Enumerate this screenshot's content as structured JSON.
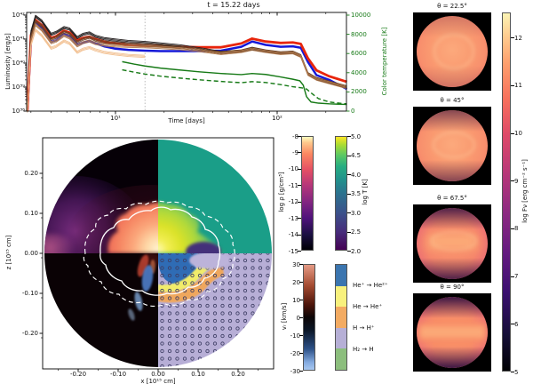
{
  "top_chart": {
    "title": "t = 15.22 days",
    "xlabel": "Time [days]",
    "ylabel": "Luminosity [erg/s]",
    "right_ylabel": "Color temperature [K]",
    "right_axis_color": "#177a17",
    "marker_days": 15.22,
    "x_ticks": [
      {
        "label": "10¹",
        "t": 10
      },
      {
        "label": "10²",
        "t": 100
      }
    ],
    "y_ticks": [
      {
        "label": "10⁴²",
        "logL": 42
      },
      {
        "label": "10⁴¹",
        "logL": 41
      },
      {
        "label": "10⁴⁰",
        "logL": 40
      },
      {
        "label": "10³⁹",
        "logL": 39
      },
      {
        "label": "10³⁸",
        "logL": 38
      }
    ],
    "right_ticks": [
      {
        "label": "10000",
        "T": 10000
      },
      {
        "label": "8000",
        "T": 8000
      },
      {
        "label": "6000",
        "T": 6000
      },
      {
        "label": "4000",
        "T": 4000
      },
      {
        "label": "2000",
        "T": 2000
      },
      {
        "label": "0",
        "T": 0
      }
    ]
  },
  "chart_data": [
    {
      "type": "line",
      "title": "luminosity_vs_time",
      "xlabel": "Time [days]",
      "ylabel": "Luminosity [erg/s]",
      "x_scale": "log",
      "y_scale": "log",
      "xlim_days": [
        2.8,
        270
      ],
      "ylim_log10": [
        38,
        42
      ],
      "x_days": [
        2.85,
        3.0,
        3.2,
        3.5,
        4.0,
        4.3,
        4.8,
        5.2,
        5.8,
        6.3,
        6.9,
        7.5,
        8.5,
        10,
        12,
        15.2,
        19,
        25,
        33,
        45,
        60,
        70,
        85,
        105,
        125,
        140,
        155,
        175,
        210,
        270
      ],
      "series": [
        {
          "name": "L_viewing_angle_pole",
          "color": "#241f1f",
          "width": 0.9,
          "log10_L": [
            38.0,
            41.3,
            41.95,
            41.75,
            41.2,
            41.28,
            41.48,
            41.42,
            41.06,
            41.2,
            41.26,
            41.12,
            41.02,
            40.96,
            40.9,
            40.86,
            40.8,
            40.72,
            40.6,
            40.45,
            40.5,
            40.6,
            40.5,
            40.42,
            40.45,
            40.3,
            39.55,
            39.35,
            39.2,
            39.0
          ]
        },
        {
          "name": "L_viewing_angle_mid1",
          "color": "#6b4226",
          "width": 0.85,
          "log10_L": [
            38.0,
            41.1,
            41.75,
            41.55,
            41.0,
            41.08,
            41.3,
            41.22,
            40.88,
            41.0,
            41.08,
            40.96,
            40.88,
            40.83,
            40.79,
            40.76,
            40.72,
            40.66,
            40.56,
            40.43,
            40.51,
            40.62,
            40.51,
            40.43,
            40.46,
            40.31,
            39.56,
            39.36,
            39.21,
            39.01
          ]
        },
        {
          "name": "L_viewing_angle_mid2",
          "color": "#b07a4e",
          "width": 0.85,
          "log10_L": [
            38.0,
            40.95,
            41.6,
            41.38,
            40.85,
            40.92,
            41.15,
            41.05,
            40.72,
            40.85,
            40.92,
            40.82,
            40.75,
            40.72,
            40.7,
            40.68,
            40.65,
            40.6,
            40.52,
            40.4,
            40.48,
            40.58,
            40.48,
            40.4,
            40.43,
            40.28,
            39.53,
            39.33,
            39.18,
            38.98
          ]
        },
        {
          "name": "L_viewing_angle_equator",
          "color": "#f2c091",
          "width": 0.85,
          "log10_L": [
            38.0,
            40.75,
            41.38,
            41.15,
            40.62,
            40.7,
            40.92,
            40.82,
            40.45,
            40.58,
            40.65,
            40.55,
            40.45,
            40.38,
            40.32,
            40.28
          ]
        },
        {
          "name": "L_thick_blue",
          "color": "#1518d8",
          "width": 2.5,
          "log10_L": [
            38.0,
            41.0,
            41.7,
            41.45,
            40.88,
            40.95,
            41.2,
            41.1,
            40.76,
            40.86,
            40.93,
            40.83,
            40.7,
            40.6,
            40.55,
            40.52,
            40.5,
            40.5,
            40.5,
            40.52,
            40.68,
            40.9,
            40.76,
            40.68,
            40.7,
            40.64,
            40.05,
            39.5,
            39.3,
            38.92
          ]
        },
        {
          "name": "L_thick_red",
          "color": "#e8250c",
          "width": 2.8,
          "log10_L": [
            38.0,
            41.15,
            41.8,
            41.58,
            41.05,
            41.12,
            41.35,
            41.27,
            40.95,
            41.05,
            41.1,
            41.0,
            40.9,
            40.82,
            40.76,
            40.72,
            40.7,
            40.68,
            40.66,
            40.66,
            40.82,
            41.02,
            40.9,
            40.84,
            40.86,
            40.8,
            40.2,
            39.7,
            39.45,
            39.22
          ]
        }
      ]
    },
    {
      "type": "line",
      "title": "color_temperature_vs_time",
      "ylabel": "Color temperature [K]",
      "ylim_K": [
        0,
        10000
      ],
      "x_days": [
        11,
        13,
        15.2,
        19,
        25,
        33,
        45,
        60,
        70,
        85,
        105,
        125,
        138,
        145,
        152,
        162,
        180,
        210,
        250,
        270
      ],
      "series": [
        {
          "name": "T_color_solid",
          "color": "#177a17",
          "style": "solid",
          "T_K": [
            5150,
            4900,
            4700,
            4480,
            4280,
            4090,
            3920,
            3800,
            3920,
            3820,
            3560,
            3320,
            3160,
            2700,
            1500,
            950,
            830,
            760,
            710,
            690
          ]
        },
        {
          "name": "T_color_dashed",
          "color": "#177a17",
          "style": "dashed",
          "T_K": [
            4300,
            4060,
            3860,
            3640,
            3440,
            3260,
            3090,
            2960,
            3070,
            2980,
            2760,
            2540,
            2450,
            2400,
            2300,
            1900,
            1300,
            950,
            800,
            760
          ]
        }
      ]
    }
  ],
  "main_map": {
    "xlabel": "x [10¹⁵ cm]",
    "ylabel": "z [10¹⁵ cm]",
    "x_ticks": [
      "-0.20",
      "-0.10",
      "0.00",
      "0.10",
      "0.20"
    ],
    "y_ticks": [
      "0.20",
      "0.10",
      "0.00",
      "-0.10",
      "-0.20"
    ],
    "quadrants": [
      "density (log rho, magma)",
      "temperature (log T, viridis)",
      "radial velocity (v_r)",
      "ionization fronts (hatched)"
    ]
  },
  "colorbars": {
    "density": {
      "label": "log ρ [g/cm³]",
      "ticks": [
        "-8",
        "-9",
        "-10",
        "-11",
        "-12",
        "-13",
        "-14",
        "-15"
      ],
      "colormap": "magma",
      "top_color": "#fcfdbf",
      "bottom_color": "#000004"
    },
    "temperature": {
      "label": "log T [K]",
      "ticks": [
        "5.0",
        "4.5",
        "4.0",
        "3.5",
        "3.0",
        "2.5",
        "2.0"
      ],
      "colormap": "viridis",
      "top_color": "#fde725",
      "bottom_color": "#440154"
    },
    "velocity": {
      "label": "vᵣ [km/s]",
      "ticks": [
        "30",
        "20",
        "10",
        "0",
        "-10",
        "-20",
        "-30"
      ],
      "top_color": "#e59a85",
      "mid_color": "#0c0607",
      "bottom_color": "#a8c8f0"
    },
    "ionization": {
      "segment_colors": [
        "#3b75af",
        "#f8f17d",
        "#f3ab62",
        "#b6afd6",
        "#8cbe7d"
      ],
      "labels": [
        "He⁺ → He²⁺",
        "He → He⁺",
        "H → H⁺",
        "H₂ → H"
      ]
    }
  },
  "flux_panels": {
    "titles": [
      "θ = 22.5°",
      "θ = 45°",
      "θ = 67.5°",
      "θ = 90°"
    ],
    "colorbar": {
      "label": "log Fν [erg cm⁻² s⁻¹]",
      "ticks": [
        "12",
        "11",
        "10",
        "9",
        "8",
        "7",
        "6",
        "5"
      ],
      "vmin": 5,
      "vmax": 12.5,
      "colormap": "magma"
    }
  }
}
